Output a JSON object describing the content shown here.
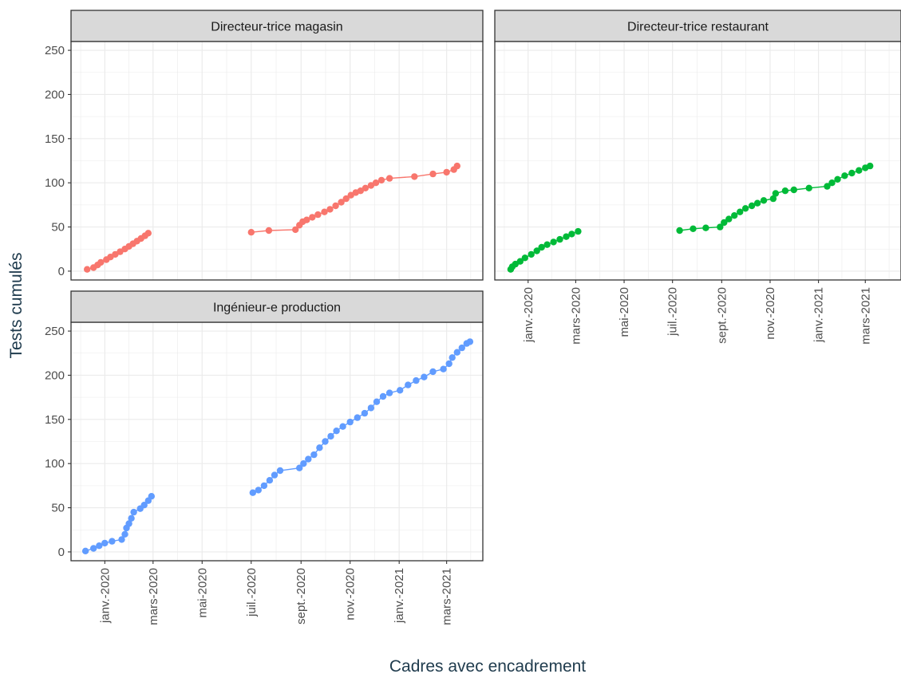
{
  "chart_data": {
    "type": "line",
    "xlabel": "Cadres avec encadrement",
    "ylabel": "Tests cumulés",
    "ylim": [
      -10,
      260
    ],
    "xlim": [
      "2019-11-20",
      "2021-04-15"
    ],
    "y_ticks": [
      0,
      50,
      100,
      150,
      200,
      250
    ],
    "x_ticks": [
      {
        "date": "2020-01-01",
        "label": "janv.-2020"
      },
      {
        "date": "2020-03-01",
        "label": "mars-2020"
      },
      {
        "date": "2020-05-01",
        "label": "mai-2020"
      },
      {
        "date": "2020-07-01",
        "label": "juil.-2020"
      },
      {
        "date": "2020-09-01",
        "label": "sept.-2020"
      },
      {
        "date": "2020-11-01",
        "label": "nov.-2020"
      },
      {
        "date": "2021-01-01",
        "label": "janv.-2021"
      },
      {
        "date": "2021-03-01",
        "label": "mars-2021"
      }
    ],
    "grid": true,
    "legend": "none",
    "panels": [
      {
        "title": "Directeur-trice magasin",
        "color": "#F8766D",
        "segments": [
          [
            [
              "2019-12-10",
              2
            ],
            [
              "2019-12-18",
              4
            ],
            [
              "2019-12-23",
              7
            ],
            [
              "2019-12-27",
              10
            ],
            [
              "2020-01-03",
              13
            ],
            [
              "2020-01-08",
              16
            ],
            [
              "2020-01-14",
              19
            ],
            [
              "2020-01-20",
              22
            ],
            [
              "2020-01-26",
              25
            ],
            [
              "2020-01-31",
              28
            ],
            [
              "2020-02-05",
              31
            ],
            [
              "2020-02-10",
              34
            ],
            [
              "2020-02-15",
              37
            ],
            [
              "2020-02-20",
              40
            ],
            [
              "2020-02-24",
              43
            ]
          ],
          [
            [
              "2020-07-01",
              44
            ],
            [
              "2020-07-23",
              46
            ],
            [
              "2020-08-25",
              47
            ],
            [
              "2020-08-30",
              52
            ],
            [
              "2020-09-03",
              56
            ],
            [
              "2020-09-08",
              58
            ],
            [
              "2020-09-15",
              61
            ],
            [
              "2020-09-22",
              64
            ],
            [
              "2020-09-30",
              67
            ],
            [
              "2020-10-07",
              70
            ],
            [
              "2020-10-14",
              74
            ],
            [
              "2020-10-21",
              78
            ],
            [
              "2020-10-27",
              82
            ],
            [
              "2020-11-02",
              86
            ],
            [
              "2020-11-08",
              89
            ],
            [
              "2020-11-14",
              91
            ],
            [
              "2020-11-20",
              94
            ],
            [
              "2020-11-27",
              97
            ],
            [
              "2020-12-03",
              100
            ],
            [
              "2020-12-10",
              103
            ],
            [
              "2020-12-20",
              105
            ],
            [
              "2021-01-20",
              107
            ],
            [
              "2021-02-12",
              110
            ],
            [
              "2021-03-01",
              112
            ],
            [
              "2021-03-10",
              115
            ],
            [
              "2021-03-14",
              119
            ]
          ]
        ]
      },
      {
        "title": "Directeur-trice restaurant",
        "color": "#00BA38",
        "segments": [
          [
            [
              "2019-12-10",
              2
            ],
            [
              "2019-12-12",
              5
            ],
            [
              "2019-12-16",
              8
            ],
            [
              "2019-12-22",
              11
            ],
            [
              "2019-12-28",
              15
            ],
            [
              "2020-01-05",
              19
            ],
            [
              "2020-01-12",
              23
            ],
            [
              "2020-01-18",
              27
            ],
            [
              "2020-01-25",
              30
            ],
            [
              "2020-02-02",
              33
            ],
            [
              "2020-02-10",
              36
            ],
            [
              "2020-02-18",
              39
            ],
            [
              "2020-02-25",
              42
            ],
            [
              "2020-03-04",
              45
            ]
          ],
          [
            [
              "2020-07-10",
              46
            ],
            [
              "2020-07-27",
              48
            ],
            [
              "2020-08-12",
              49
            ],
            [
              "2020-08-30",
              50
            ],
            [
              "2020-09-04",
              55
            ],
            [
              "2020-09-10",
              59
            ],
            [
              "2020-09-17",
              63
            ],
            [
              "2020-09-24",
              67
            ],
            [
              "2020-10-01",
              71
            ],
            [
              "2020-10-09",
              74
            ],
            [
              "2020-10-16",
              77
            ],
            [
              "2020-10-24",
              80
            ],
            [
              "2020-11-05",
              82
            ],
            [
              "2020-11-08",
              88
            ],
            [
              "2020-11-20",
              91
            ],
            [
              "2020-12-01",
              92
            ],
            [
              "2020-12-20",
              94
            ],
            [
              "2021-01-12",
              96
            ],
            [
              "2021-01-18",
              100
            ],
            [
              "2021-01-25",
              104
            ],
            [
              "2021-02-03",
              108
            ],
            [
              "2021-02-12",
              111
            ],
            [
              "2021-02-21",
              114
            ],
            [
              "2021-03-01",
              117
            ],
            [
              "2021-03-07",
              119
            ]
          ]
        ]
      },
      {
        "title": "Ingénieur-e production",
        "color": "#619CFF",
        "segments": [
          [
            [
              "2019-12-08",
              1
            ],
            [
              "2019-12-18",
              4
            ],
            [
              "2019-12-25",
              7
            ],
            [
              "2020-01-01",
              10
            ],
            [
              "2020-01-10",
              12
            ],
            [
              "2020-01-22",
              14
            ],
            [
              "2020-01-26",
              20
            ],
            [
              "2020-01-28",
              27
            ],
            [
              "2020-01-31",
              32
            ],
            [
              "2020-02-03",
              38
            ],
            [
              "2020-02-06",
              45
            ],
            [
              "2020-02-14",
              49
            ],
            [
              "2020-02-19",
              53
            ],
            [
              "2020-02-24",
              58
            ],
            [
              "2020-02-28",
              63
            ]
          ],
          [
            [
              "2020-07-03",
              67
            ],
            [
              "2020-07-10",
              70
            ],
            [
              "2020-07-17",
              75
            ],
            [
              "2020-07-24",
              81
            ],
            [
              "2020-07-30",
              87
            ],
            [
              "2020-08-06",
              92
            ],
            [
              "2020-08-30",
              95
            ],
            [
              "2020-09-04",
              100
            ],
            [
              "2020-09-10",
              105
            ],
            [
              "2020-09-17",
              110
            ],
            [
              "2020-09-24",
              118
            ],
            [
              "2020-10-01",
              125
            ],
            [
              "2020-10-08",
              131
            ],
            [
              "2020-10-15",
              137
            ],
            [
              "2020-10-23",
              142
            ],
            [
              "2020-11-01",
              147
            ],
            [
              "2020-11-10",
              152
            ],
            [
              "2020-11-19",
              157
            ],
            [
              "2020-11-27",
              163
            ],
            [
              "2020-12-04",
              170
            ],
            [
              "2020-12-12",
              176
            ],
            [
              "2020-12-20",
              180
            ],
            [
              "2021-01-02",
              183
            ],
            [
              "2021-01-12",
              189
            ],
            [
              "2021-01-22",
              194
            ],
            [
              "2021-02-01",
              198
            ],
            [
              "2021-02-12",
              204
            ],
            [
              "2021-02-25",
              207
            ],
            [
              "2021-03-04",
              213
            ],
            [
              "2021-03-08",
              220
            ],
            [
              "2021-03-14",
              226
            ],
            [
              "2021-03-20",
              231
            ],
            [
              "2021-03-26",
              236
            ],
            [
              "2021-03-30",
              238
            ]
          ]
        ]
      }
    ]
  }
}
